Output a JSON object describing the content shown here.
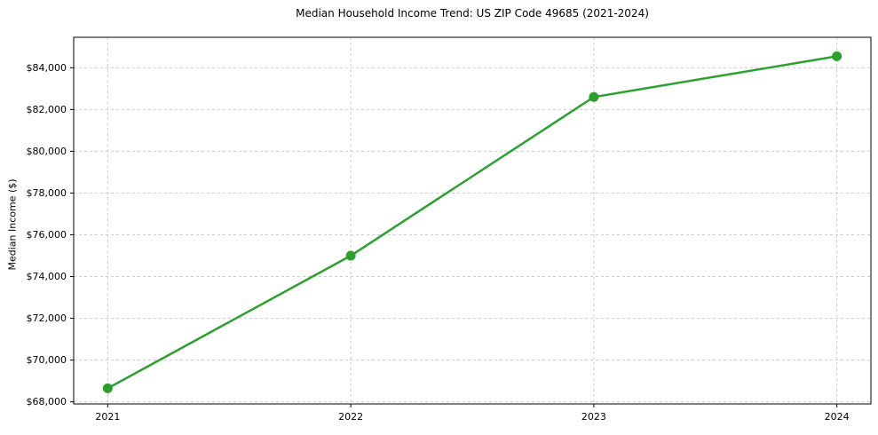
{
  "chart_data": {
    "type": "line",
    "title": "Median Household Income Trend: US ZIP Code 49685 (2021-2024)",
    "xlabel": "",
    "ylabel": "Median Income ($)",
    "x": [
      2021,
      2022,
      2023,
      2024
    ],
    "series": [
      {
        "name": "Median Household Income",
        "values": [
          68650,
          75000,
          82600,
          84550
        ],
        "color": "#2ca02c",
        "marker": "circle",
        "line_width": 2.5,
        "marker_radius": 5.5
      }
    ],
    "xticks": {
      "values": [
        2021,
        2022,
        2023,
        2024
      ],
      "labels": [
        "2021",
        "2022",
        "2023",
        "2024"
      ]
    },
    "yticks": {
      "values": [
        68000,
        70000,
        72000,
        74000,
        76000,
        78000,
        80000,
        82000,
        84000
      ],
      "labels": [
        "$68,000",
        "$70,000",
        "$72,000",
        "$74,000",
        "$76,000",
        "$78,000",
        "$80,000",
        "$82,000",
        "$84,000"
      ]
    },
    "xlim": [
      2020.86,
      2024.14
    ],
    "ylim": [
      67900,
      85460
    ],
    "grid": true,
    "grid_style": "dashed",
    "legend": "none"
  },
  "style": {
    "background": "#ffffff",
    "grid_color": "#cccccc",
    "axis_color": "#000000",
    "text_color": "#000000"
  }
}
